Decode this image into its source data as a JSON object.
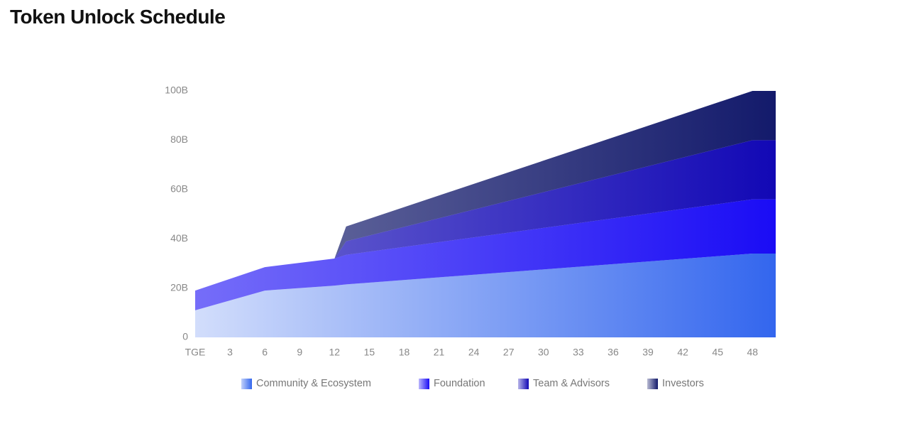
{
  "chart_data": {
    "type": "stacked_area",
    "title": "Token Unlock Schedule",
    "x": [
      0,
      6,
      12,
      13,
      48,
      50
    ],
    "series": [
      {
        "name": "Community & Ecosystem",
        "color": "#3366ee",
        "values": [
          11,
          19,
          21,
          21.5,
          34,
          34
        ]
      },
      {
        "name": "Foundation",
        "color": "#1a0cf5",
        "values": [
          8,
          9.5,
          11,
          12,
          22,
          22
        ]
      },
      {
        "name": "Team & Advisors",
        "color": "#1208b5",
        "values": [
          0,
          0,
          0,
          5.5,
          24,
          24
        ]
      },
      {
        "name": "Investors",
        "color": "#131a6b",
        "values": [
          0,
          0,
          0,
          6,
          20,
          20
        ]
      }
    ],
    "xlim": [
      0,
      50
    ],
    "xticks": [
      {
        "value": 0,
        "label": "TGE"
      },
      3,
      6,
      9,
      12,
      15,
      18,
      21,
      24,
      27,
      30,
      33,
      36,
      39,
      42,
      45,
      48
    ],
    "ylim": [
      0,
      100
    ],
    "yticks": [
      0,
      {
        "value": 20,
        "label": "20B"
      },
      {
        "value": 40,
        "label": "40B"
      },
      {
        "value": 60,
        "label": "60B"
      },
      {
        "value": 80,
        "label": "80B"
      },
      {
        "value": 100,
        "label": "100B"
      }
    ],
    "grid": false
  }
}
